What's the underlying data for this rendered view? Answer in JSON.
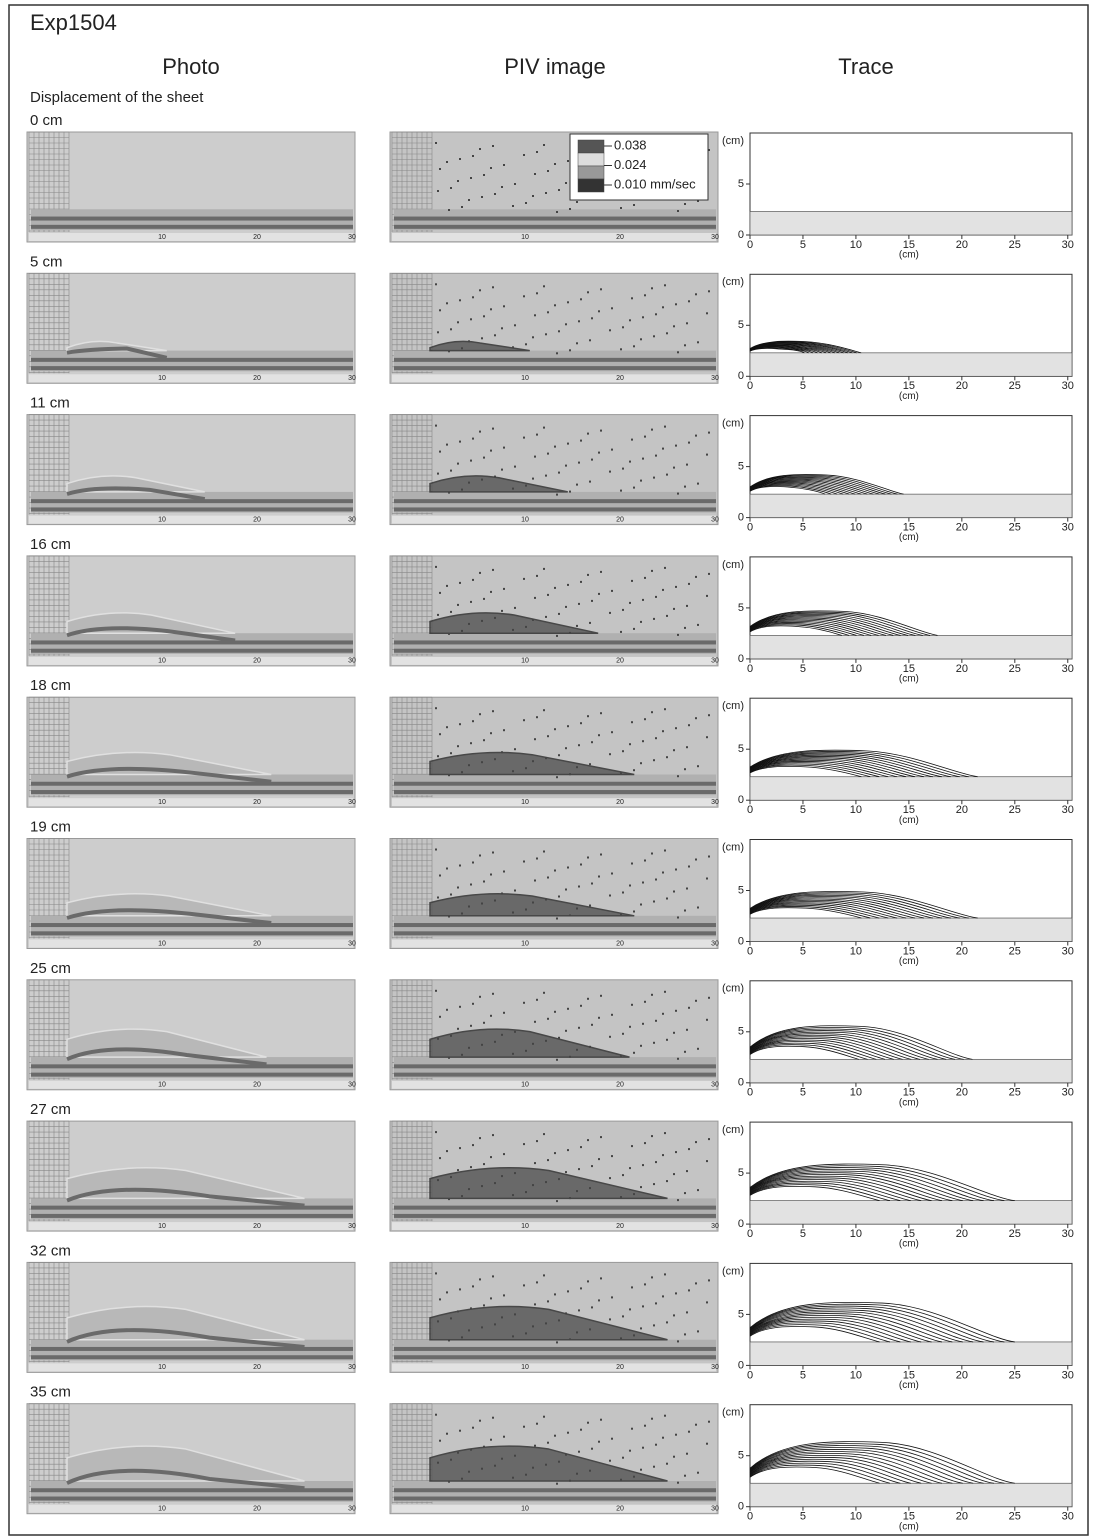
{
  "title": "Exp1504",
  "columns": [
    "Photo",
    "PIV image",
    "Trace"
  ],
  "subtitle": "Displacement of the sheet",
  "piv_legend": {
    "labels": [
      "0.038",
      "0.024",
      "0.010 mm/sec"
    ]
  },
  "ruler_ticks": [
    10,
    20,
    30
  ],
  "trace_axes": {
    "y_unit": "(cm)",
    "x_unit": "(cm)",
    "xlim": [
      0,
      30.4
    ],
    "xticks": [
      0,
      5,
      10,
      15,
      20,
      25,
      30
    ],
    "ylim": [
      0,
      10
    ],
    "yticks": [
      0,
      5
    ],
    "base_height": 2.3
  },
  "rows": [
    {
      "label": "0 cm"
    },
    {
      "label": "5 cm",
      "wedge_front": 10.5,
      "wedge_height": 3.5
    },
    {
      "label": "11 cm",
      "wedge_front": 14.5,
      "wedge_height": 4.3
    },
    {
      "label": "16 cm",
      "wedge_front": 17.7,
      "wedge_height": 4.8
    },
    {
      "label": "18 cm",
      "wedge_front": 21.5,
      "wedge_height": 5
    },
    {
      "label": "19 cm",
      "wedge_front": 21.5,
      "wedge_height": 5
    },
    {
      "label": "25 cm",
      "wedge_front": 21,
      "wedge_height": 5.7
    },
    {
      "label": "27 cm",
      "wedge_front": 25,
      "wedge_height": 6
    },
    {
      "label": "32 cm",
      "wedge_front": 25,
      "wedge_height": 6.3
    },
    {
      "label": "35 cm",
      "wedge_front": 25,
      "wedge_height": 6.5
    }
  ]
}
